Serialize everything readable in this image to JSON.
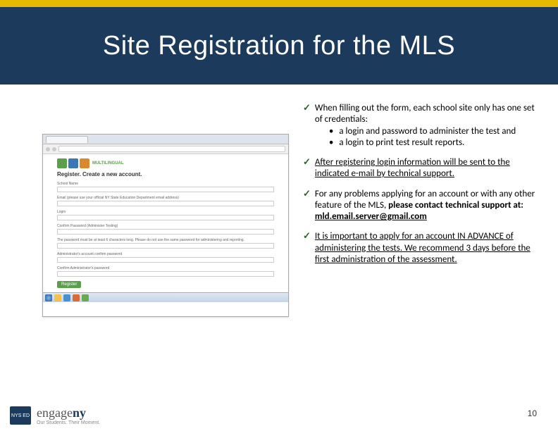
{
  "colors": {
    "gold": "#e6b800",
    "navy": "#1b3a5c",
    "check": "#2b5e2b",
    "logo_green": "#5aa04a",
    "logo_blue": "#3a78b5",
    "logo_orange": "#d9892b"
  },
  "title": "Site Registration for the MLS",
  "bullets": [
    {
      "text": "When filling out the form, each school site only has one set of credentials:",
      "subs": [
        "a login and password  to administer the test and",
        "a login to print test result reports."
      ]
    },
    {
      "text": "After registering login information will be sent to the indicated e-mail by technical support.",
      "underline": true
    },
    {
      "text_pre": "For any problems applying for an account or with any other feature of the MLS, ",
      "text_bold": "please contact technical support at:",
      "email": "mld.email.server@gmail.com"
    },
    {
      "text": "It is important to apply for an account IN ADVANCE of administering the tests. We recommend 3 days before the first administration of the assessment.",
      "underline": true
    }
  ],
  "browser": {
    "logo_text": "MULTILINGUAL",
    "register_heading": "Register. Create a new account.",
    "fields": [
      "School Name",
      "Email (please use your official NY State Education Department email address)",
      "Login",
      "Confirm Password (Administer Testing)",
      "The password must be at least 6 characters long. Please do not use the same password for administering and reporting.",
      "Administrator's account confirm password",
      "Confirm Administrator's password"
    ],
    "button": "Register"
  },
  "footer": {
    "nysed": "NYS ED",
    "engage_a": "engage",
    "engage_b": "ny",
    "tagline": "Our Students. Their Moment."
  },
  "page_number": "10"
}
